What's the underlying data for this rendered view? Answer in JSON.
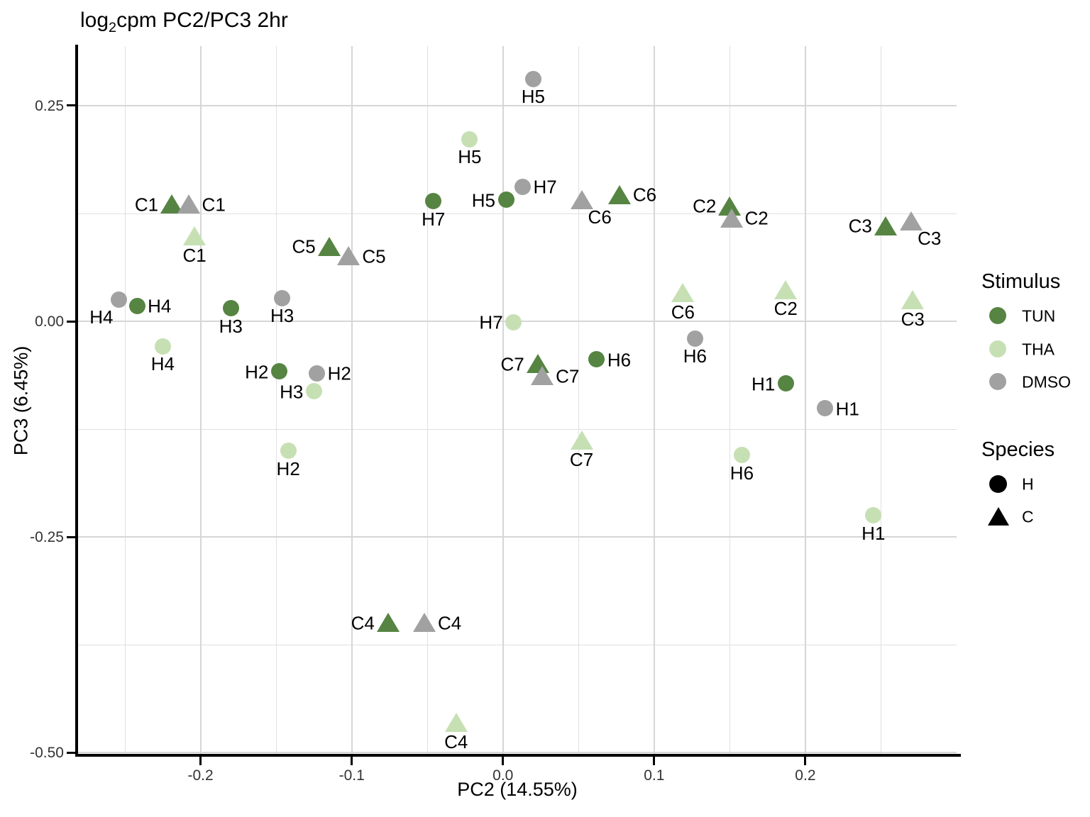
{
  "title": {
    "prefix": "log",
    "subscript": "2",
    "suffix": "cpm PC2/PC3 2hr"
  },
  "axes": {
    "x": {
      "label": "PC2 (14.55%)"
    },
    "y": {
      "label": "PC3 (6.45%)"
    }
  },
  "legend": {
    "stimulus": {
      "title": "Stimulus",
      "items": [
        {
          "label": "TUN",
          "stimulus": "TUN"
        },
        {
          "label": "THA",
          "stimulus": "THA"
        },
        {
          "label": "DMSO",
          "stimulus": "DMSO"
        }
      ]
    },
    "species": {
      "title": "Species",
      "items": [
        {
          "label": "H",
          "shape": "circle"
        },
        {
          "label": "C",
          "shape": "triangle"
        }
      ]
    }
  },
  "colors": {
    "TUN": "#568442",
    "THA": "#C6E0B4",
    "DMSO": "#A1A1A1",
    "legend_key": "#000000",
    "axis": "#000000",
    "grid_major": "#D6D6D6",
    "grid_minor": "#E0E0E0"
  },
  "chart_data": {
    "type": "scatter",
    "title": "log2cpm PC2/PC3 2hr",
    "xlabel": "PC2 (14.55%)",
    "ylabel": "PC3 (6.45%)",
    "xlim": [
      -0.281,
      0.3
    ],
    "ylim": [
      -0.503,
      0.319
    ],
    "grid": true,
    "legend_position": "right",
    "encoding": {
      "color": "Stimulus",
      "shape": "Species"
    },
    "x_ticks": [
      {
        "value": -0.2,
        "label": "-0.2"
      },
      {
        "value": -0.1,
        "label": "-0.1"
      },
      {
        "value": 0.0,
        "label": "0.0"
      },
      {
        "value": 0.1,
        "label": "0.1"
      },
      {
        "value": 0.2,
        "label": "0.2"
      }
    ],
    "y_ticks": [
      {
        "value": 0.25,
        "label": "0.25"
      },
      {
        "value": 0.0,
        "label": "0.00"
      },
      {
        "value": -0.25,
        "label": "-0.25"
      },
      {
        "value": -0.5,
        "label": "-0.50"
      }
    ],
    "x_minor": [
      -0.25,
      -0.15,
      -0.05,
      0.05,
      0.15,
      0.25
    ],
    "y_minor": [
      0.125,
      -0.125,
      -0.375
    ],
    "points": [
      {
        "sample": "H4",
        "species": "H",
        "stimulus": "DMSO",
        "x": -0.254,
        "y": 0.025,
        "label_pos": "below-left"
      },
      {
        "sample": "H4",
        "species": "H",
        "stimulus": "TUN",
        "x": -0.242,
        "y": 0.018,
        "label_pos": "right"
      },
      {
        "sample": "H4",
        "species": "H",
        "stimulus": "THA",
        "x": -0.225,
        "y": -0.029,
        "label_pos": "below"
      },
      {
        "sample": "H3",
        "species": "H",
        "stimulus": "TUN",
        "x": -0.18,
        "y": 0.015,
        "label_pos": "below"
      },
      {
        "sample": "H3",
        "species": "H",
        "stimulus": "DMSO",
        "x": -0.146,
        "y": 0.027,
        "label_pos": "below"
      },
      {
        "sample": "H3",
        "species": "H",
        "stimulus": "THA",
        "x": -0.125,
        "y": -0.081,
        "label_pos": "left"
      },
      {
        "sample": "H2",
        "species": "H",
        "stimulus": "TUN",
        "x": -0.148,
        "y": -0.058,
        "label_pos": "left"
      },
      {
        "sample": "H2",
        "species": "H",
        "stimulus": "DMSO",
        "x": -0.123,
        "y": -0.06,
        "label_pos": "right"
      },
      {
        "sample": "H2",
        "species": "H",
        "stimulus": "THA",
        "x": -0.142,
        "y": -0.15,
        "label_pos": "below"
      },
      {
        "sample": "C1",
        "species": "C",
        "stimulus": "TUN",
        "x": -0.219,
        "y": 0.136,
        "label_pos": "left"
      },
      {
        "sample": "C1",
        "species": "C",
        "stimulus": "DMSO",
        "x": -0.208,
        "y": 0.136,
        "label_pos": "right"
      },
      {
        "sample": "C1",
        "species": "C",
        "stimulus": "THA",
        "x": -0.204,
        "y": 0.099,
        "label_pos": "below"
      },
      {
        "sample": "C5",
        "species": "C",
        "stimulus": "TUN",
        "x": -0.115,
        "y": 0.087,
        "label_pos": "left"
      },
      {
        "sample": "C5",
        "species": "C",
        "stimulus": "DMSO",
        "x": -0.102,
        "y": 0.076,
        "label_pos": "right"
      },
      {
        "sample": "H5",
        "species": "H",
        "stimulus": "THA",
        "x": -0.022,
        "y": 0.211,
        "label_pos": "below"
      },
      {
        "sample": "H5",
        "species": "H",
        "stimulus": "DMSO",
        "x": 0.02,
        "y": 0.281,
        "label_pos": "below"
      },
      {
        "sample": "H5",
        "species": "H",
        "stimulus": "TUN",
        "x": 0.002,
        "y": 0.141,
        "label_pos": "left"
      },
      {
        "sample": "H7",
        "species": "H",
        "stimulus": "TUN",
        "x": -0.046,
        "y": 0.139,
        "label_pos": "below"
      },
      {
        "sample": "H7",
        "species": "H",
        "stimulus": "DMSO",
        "x": 0.013,
        "y": 0.156,
        "label_pos": "right"
      },
      {
        "sample": "H7",
        "species": "H",
        "stimulus": "THA",
        "x": 0.007,
        "y": -0.001,
        "label_pos": "left"
      },
      {
        "sample": "C6",
        "species": "C",
        "stimulus": "DMSO",
        "x": 0.052,
        "y": 0.141,
        "label_pos": "below-right"
      },
      {
        "sample": "C6",
        "species": "C",
        "stimulus": "TUN",
        "x": 0.077,
        "y": 0.147,
        "label_pos": "right"
      },
      {
        "sample": "C6",
        "species": "C",
        "stimulus": "THA",
        "x": 0.119,
        "y": 0.033,
        "label_pos": "below"
      },
      {
        "sample": "C7",
        "species": "C",
        "stimulus": "TUN",
        "x": 0.023,
        "y": -0.049,
        "label_pos": "left"
      },
      {
        "sample": "C7",
        "species": "C",
        "stimulus": "DMSO",
        "x": 0.026,
        "y": -0.063,
        "label_pos": "right"
      },
      {
        "sample": "C7",
        "species": "C",
        "stimulus": "THA",
        "x": 0.052,
        "y": -0.138,
        "label_pos": "below"
      },
      {
        "sample": "H6",
        "species": "H",
        "stimulus": "TUN",
        "x": 0.062,
        "y": -0.044,
        "label_pos": "right"
      },
      {
        "sample": "H6",
        "species": "H",
        "stimulus": "DMSO",
        "x": 0.127,
        "y": -0.02,
        "label_pos": "below"
      },
      {
        "sample": "H6",
        "species": "H",
        "stimulus": "THA",
        "x": 0.158,
        "y": -0.155,
        "label_pos": "below"
      },
      {
        "sample": "C2",
        "species": "C",
        "stimulus": "TUN",
        "x": 0.15,
        "y": 0.134,
        "label_pos": "left"
      },
      {
        "sample": "C2",
        "species": "C",
        "stimulus": "DMSO",
        "x": 0.151,
        "y": 0.12,
        "label_pos": "right"
      },
      {
        "sample": "C2",
        "species": "C",
        "stimulus": "THA",
        "x": 0.187,
        "y": 0.037,
        "label_pos": "below"
      },
      {
        "sample": "C3",
        "species": "C",
        "stimulus": "TUN",
        "x": 0.253,
        "y": 0.111,
        "label_pos": "left"
      },
      {
        "sample": "C3",
        "species": "C",
        "stimulus": "DMSO",
        "x": 0.27,
        "y": 0.116,
        "label_pos": "below-right"
      },
      {
        "sample": "C3",
        "species": "C",
        "stimulus": "THA",
        "x": 0.271,
        "y": 0.025,
        "label_pos": "below"
      },
      {
        "sample": "H1",
        "species": "H",
        "stimulus": "TUN",
        "x": 0.187,
        "y": -0.072,
        "label_pos": "left"
      },
      {
        "sample": "H1",
        "species": "H",
        "stimulus": "DMSO",
        "x": 0.213,
        "y": -0.101,
        "label_pos": "right"
      },
      {
        "sample": "H1",
        "species": "H",
        "stimulus": "THA",
        "x": 0.245,
        "y": -0.225,
        "label_pos": "below"
      },
      {
        "sample": "C4",
        "species": "C",
        "stimulus": "TUN",
        "x": -0.076,
        "y": -0.349,
        "label_pos": "left"
      },
      {
        "sample": "C4",
        "species": "C",
        "stimulus": "DMSO",
        "x": -0.052,
        "y": -0.349,
        "label_pos": "right"
      },
      {
        "sample": "C4",
        "species": "C",
        "stimulus": "THA",
        "x": -0.031,
        "y": -0.465,
        "label_pos": "below"
      }
    ]
  }
}
